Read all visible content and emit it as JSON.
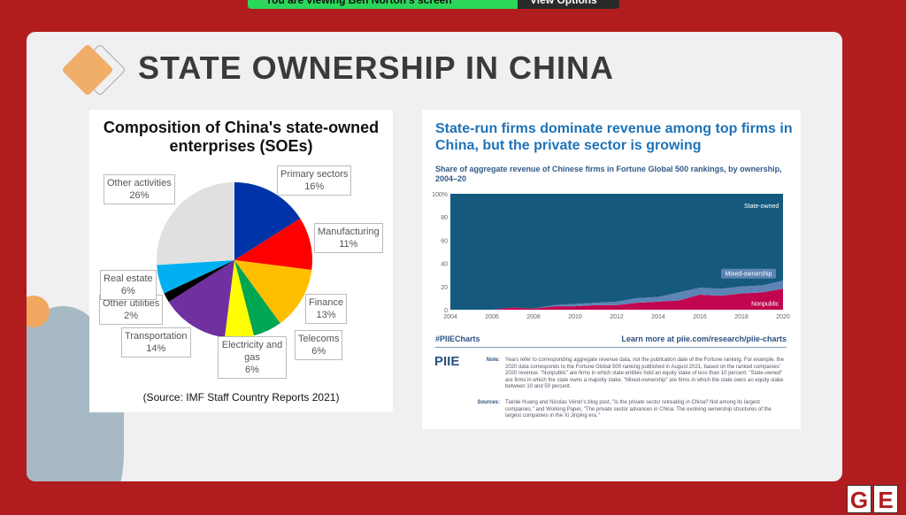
{
  "zoom_banner": {
    "viewing": "You are viewing Ben Norton's screen",
    "options": "View Options"
  },
  "slide": {
    "title": "STATE OWNERSHIP IN CHINA"
  },
  "chart_data": [
    {
      "type": "pie",
      "title": "Composition of China's state-owned enterprises (SOEs)",
      "source": "(Source: IMF Staff Country Reports 2021)",
      "slices": [
        {
          "label": "Primary sectors",
          "value": 16,
          "pct": "16%",
          "color": "#0033a8"
        },
        {
          "label": "Manufacturing",
          "value": 11,
          "pct": "11%",
          "color": "#ff0000"
        },
        {
          "label": "Finance",
          "value": 13,
          "pct": "13%",
          "color": "#ffbf00"
        },
        {
          "label": "Telecoms",
          "value": 6,
          "pct": "6%",
          "color": "#00a651"
        },
        {
          "label": "Electricity and gas",
          "value": 6,
          "pct": "6%",
          "color": "#ffff00"
        },
        {
          "label": "Transportation",
          "value": 14,
          "pct": "14%",
          "color": "#7030a0"
        },
        {
          "label": "Other utilities",
          "value": 2,
          "pct": "2%",
          "color": "#000000"
        },
        {
          "label": "Real estate",
          "value": 6,
          "pct": "6%",
          "color": "#00b0f0"
        },
        {
          "label": "Other activities",
          "value": 26,
          "pct": "26%",
          "color": "#e0e0e0"
        }
      ]
    },
    {
      "type": "area",
      "stacked": true,
      "title": "State-run firms dominate revenue among top firms in China, but the private sector is growing",
      "subtitle": "Share of aggregate revenue of Chinese firms in Fortune Global 500 rankings, by ownership, 2004–20",
      "x": [
        2004,
        2005,
        2006,
        2007,
        2008,
        2009,
        2010,
        2011,
        2012,
        2013,
        2014,
        2015,
        2016,
        2017,
        2018,
        2019,
        2020
      ],
      "xticks": [
        "2004",
        "2006",
        "2008",
        "2010",
        "2012",
        "2014",
        "2016",
        "2018",
        "2020"
      ],
      "yticks": [
        "0",
        "20",
        "40",
        "60",
        "80",
        "100%"
      ],
      "ylim": [
        0,
        100
      ],
      "series": [
        {
          "name": "Nonpublic",
          "color": "#c0064e",
          "values": [
            0,
            0,
            0,
            2,
            1,
            3,
            3,
            4,
            4,
            6,
            7,
            8,
            13,
            12,
            14,
            15,
            18
          ]
        },
        {
          "name": "Mixed-ownership",
          "color": "#5d84b5",
          "values": [
            0,
            0,
            0,
            0,
            0,
            1,
            2,
            2,
            3,
            4,
            4,
            7,
            6,
            6,
            6,
            6,
            7
          ]
        },
        {
          "name": "State-owned",
          "color": "#155a7e",
          "values": [
            100,
            100,
            100,
            98,
            99,
            96,
            95,
            94,
            93,
            90,
            89,
            85,
            81,
            82,
            80,
            79,
            75
          ]
        }
      ]
    }
  ],
  "piie": {
    "hashtag": "#PIIECharts",
    "learn_more": "Learn more at piie.com/research/piie-charts",
    "logo": "PIIE",
    "note_label": "Note:",
    "note": "Years refer to corresponding aggregate revenue data, not the publication date of the Fortune ranking. For example, the 2020 data corresponds to the Fortune Global 500 ranking published in August 2021, based on the ranked companies' 2020 revenue. \"Nonpublic\" are firms in which state entities hold an equity stake of less than 10 percent. \"State-owned\" are firms in which the state owns a majority stake. \"Mixed-ownership\" are firms in which the state owns an equity stake between 10 and 50 percent.",
    "sources_label": "Sources:",
    "sources": "Tianlei Huang and Nicolas Véron's blog post, \"Is the private sector retreating in China? Not among its largest companies,\" and Working Paper, \"The private sector advances in China: The evolving ownership structures of the largest companies in the Xi Jinping era.\""
  },
  "brand": {
    "g": "G",
    "e": "E"
  }
}
